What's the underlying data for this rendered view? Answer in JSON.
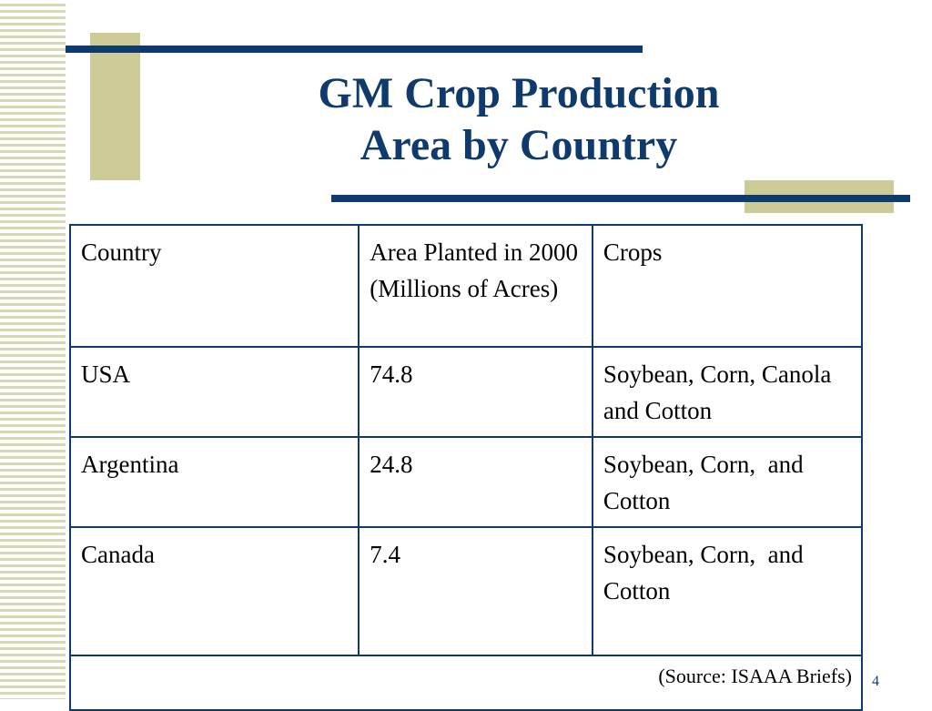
{
  "slide": {
    "title_line1": "GM Crop Production",
    "title_line2": "Area by Country",
    "page_number": "4",
    "colors": {
      "navy": "#0e3b6b",
      "olive": "#cdcc99"
    }
  },
  "table": {
    "headers": [
      "Country",
      "Area Planted in 2000 (Millions of Acres)",
      "Crops"
    ],
    "rows": [
      [
        "USA",
        "74.8",
        "Soybean, Corn, Canola and Cotton"
      ],
      [
        "Argentina",
        "24.8",
        "Soybean, Corn,  and Cotton"
      ],
      [
        "Canada",
        "7.4",
        "Soybean, Corn,  and Cotton"
      ]
    ],
    "source": "(Source: ISAAA Briefs)"
  }
}
